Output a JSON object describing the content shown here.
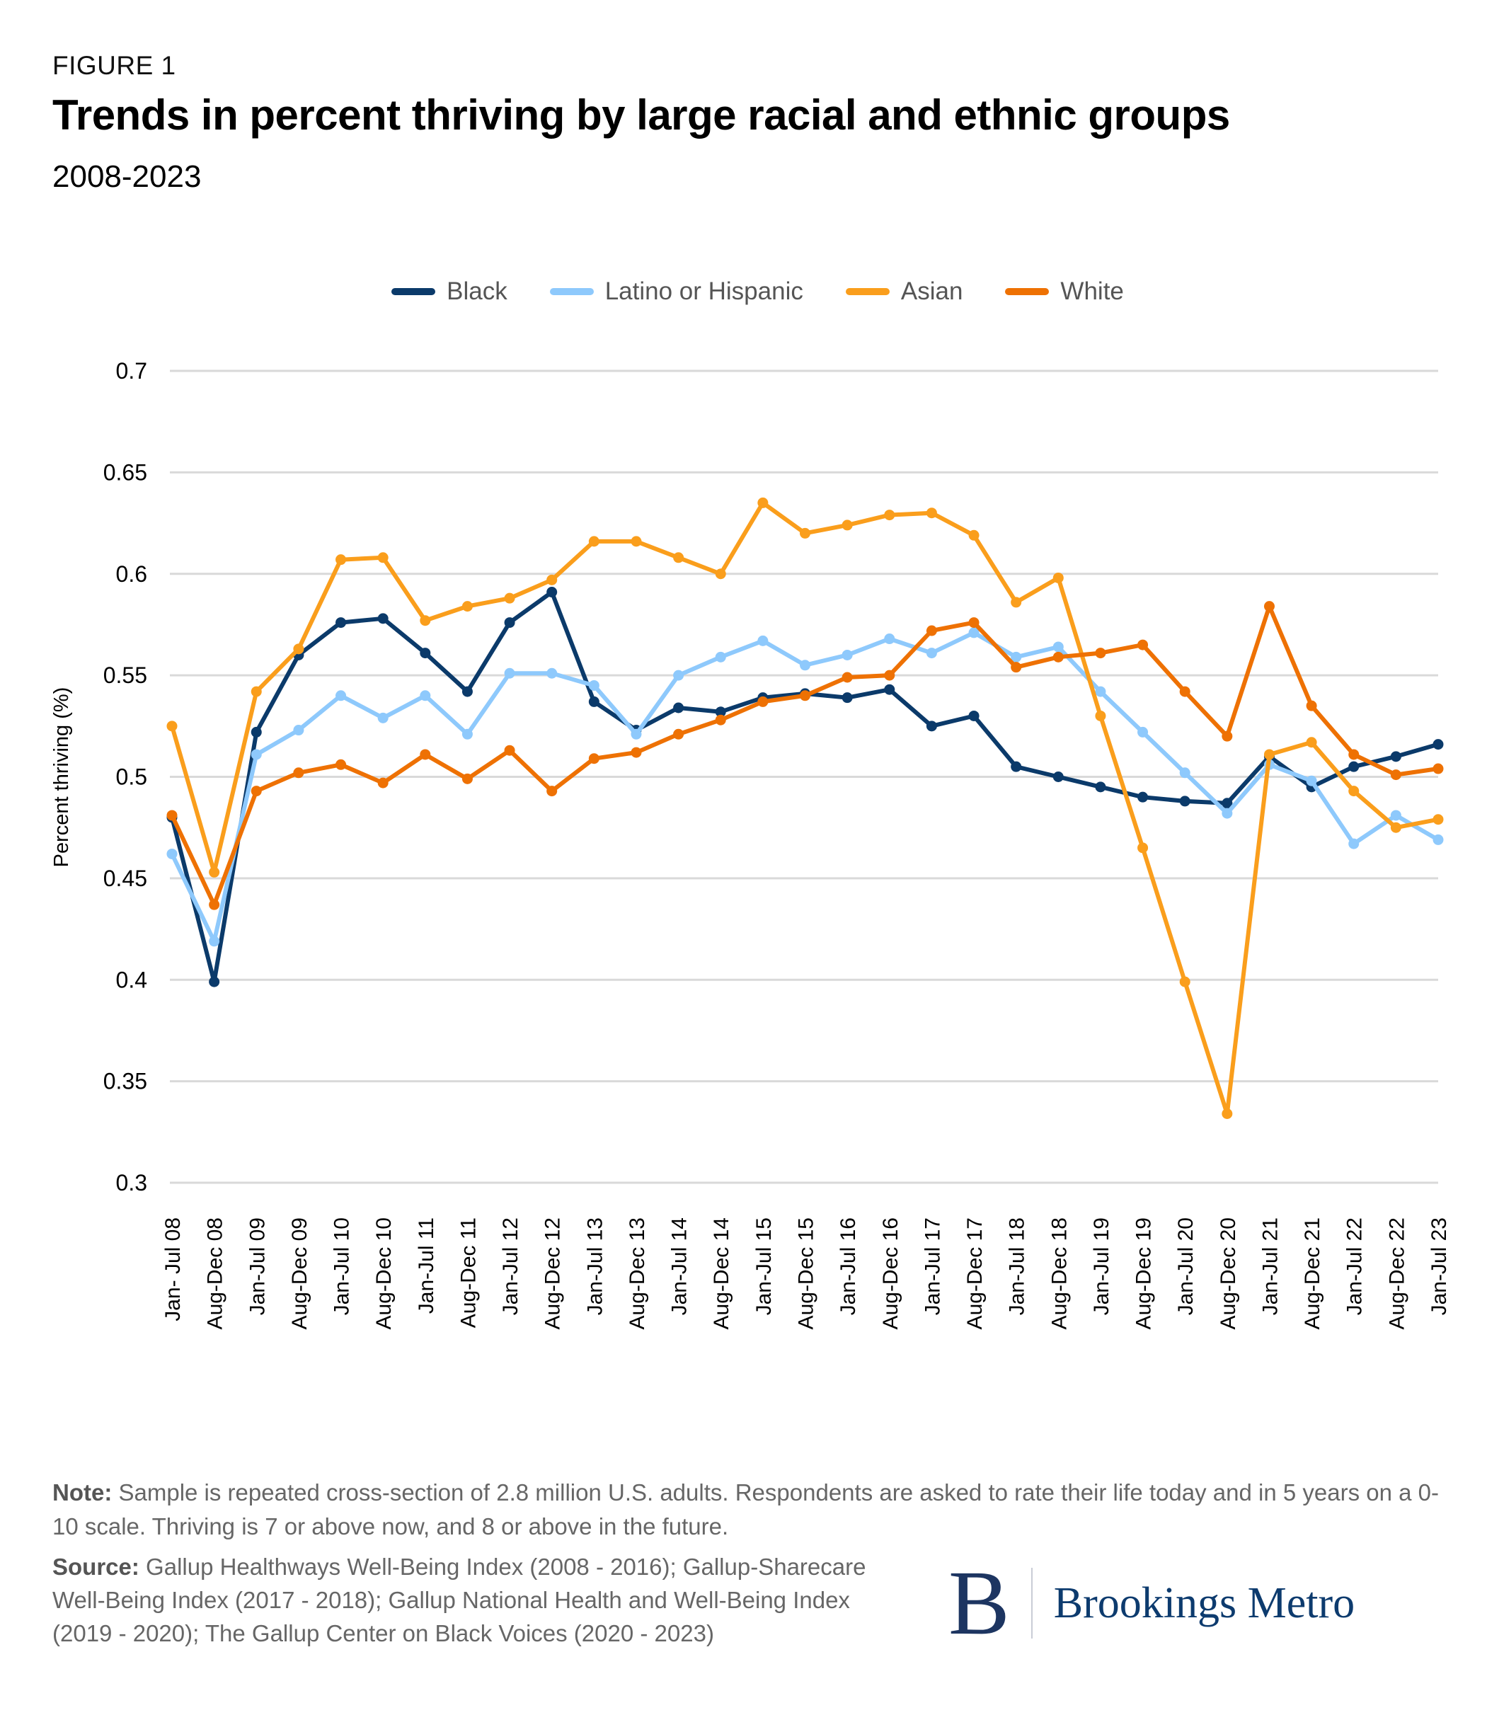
{
  "header": {
    "figure_label": "FIGURE 1",
    "title": "Trends in percent thriving by large racial and ethnic groups",
    "subtitle": "2008-2023"
  },
  "colors": {
    "Black": "#0b3a6a",
    "Latino or Hispanic": "#8ec9fc",
    "Asian": "#fa9e1c",
    "White": "#ee7103",
    "gridline": "#d9d9d9"
  },
  "chart_data": {
    "type": "line",
    "title": "Trends in percent thriving by large racial and ethnic groups",
    "subtitle": "2008-2023",
    "xlabel": "",
    "ylabel": "Percent thriving (%)",
    "ylim": [
      0.3,
      0.7
    ],
    "yticks": [
      "0.7",
      "0.65",
      "0.6",
      "0.55",
      "0.5",
      "0.45",
      "0.4",
      "0.35",
      "0.3"
    ],
    "ytick_values": [
      0.7,
      0.65,
      0.6,
      0.55,
      0.5,
      0.45,
      0.4,
      0.35,
      0.3
    ],
    "grid": true,
    "legend_position": "top-center",
    "categories": [
      "Jan- Jul 08",
      "Aug-Dec 08",
      "Jan-Jul 09",
      "Aug-Dec 09",
      "Jan-Jul 10",
      "Aug-Dec 10",
      "Jan-Jul 11",
      "Aug-Dec 11",
      "Jan-Jul 12",
      "Aug-Dec 12",
      "Jan-Jul 13",
      "Aug-Dec 13",
      "Jan-Jul 14",
      "Aug-Dec 14",
      "Jan-Jul 15",
      "Aug-Dec 15",
      "Jan-Jul 16",
      "Aug-Dec 16",
      "Jan-Jul 17",
      "Aug-Dec 17",
      "Jan-Jul 18",
      "Aug-Dec 18",
      "Jan-Jul 19",
      "Aug-Dec 19",
      "Jan-Jul 20",
      "Aug-Dec 20",
      "Jan-Jul 21",
      "Aug-Dec 21",
      "Jan-Jul 22",
      "Aug-Dec 22",
      "Jan-Jul 23"
    ],
    "series": [
      {
        "name": "Black",
        "values": [
          0.48,
          0.399,
          0.522,
          0.56,
          0.576,
          0.578,
          0.561,
          0.542,
          0.576,
          0.591,
          0.537,
          0.523,
          0.534,
          0.532,
          0.539,
          0.541,
          0.539,
          0.543,
          0.525,
          0.53,
          0.505,
          0.5,
          0.495,
          0.49,
          0.488,
          0.487,
          0.51,
          0.495,
          0.505,
          0.51,
          0.516
        ]
      },
      {
        "name": "Latino or Hispanic",
        "values": [
          0.462,
          0.419,
          0.511,
          0.523,
          0.54,
          0.529,
          0.54,
          0.521,
          0.551,
          0.551,
          0.545,
          0.521,
          0.55,
          0.559,
          0.567,
          0.555,
          0.56,
          0.568,
          0.561,
          0.571,
          0.559,
          0.564,
          0.542,
          0.522,
          0.502,
          0.482,
          0.506,
          0.498,
          0.467,
          0.481,
          0.469
        ]
      },
      {
        "name": "Asian",
        "values": [
          0.525,
          0.453,
          0.542,
          0.563,
          0.607,
          0.608,
          0.577,
          0.584,
          0.588,
          0.597,
          0.616,
          0.616,
          0.608,
          0.6,
          0.635,
          0.62,
          0.624,
          0.629,
          0.63,
          0.619,
          0.586,
          0.598,
          0.53,
          0.465,
          0.399,
          0.334,
          0.511,
          0.517,
          0.493,
          0.475,
          0.479
        ]
      },
      {
        "name": "White",
        "values": [
          0.481,
          0.437,
          0.493,
          0.502,
          0.506,
          0.497,
          0.511,
          0.499,
          0.513,
          0.493,
          0.509,
          0.512,
          0.521,
          0.528,
          0.537,
          0.54,
          0.549,
          0.55,
          0.572,
          0.576,
          0.554,
          0.559,
          0.561,
          0.565,
          0.542,
          0.52,
          0.584,
          0.535,
          0.511,
          0.501,
          0.504
        ]
      }
    ]
  },
  "legend": [
    {
      "label": "Black"
    },
    {
      "label": "Latino or Hispanic"
    },
    {
      "label": "Asian"
    },
    {
      "label": "White"
    }
  ],
  "footer": {
    "note_label": "Note:",
    "note_text": " Sample is repeated cross-section of 2.8 million U.S. adults. Respondents are asked to rate their life today and in 5 years on a 0-10 scale. Thriving is 7 or above now, and 8 or above in the future.",
    "source_label": "Source:",
    "source_text": " Gallup Healthways Well-Being Index (2008 - 2016); Gallup-Sharecare Well-Being Index (2017 - 2018); Gallup National Health and Well-Being Index (2019 - 2020); The Gallup Center on Black Voices (2020 - 2023)",
    "logo_mark": "B",
    "logo_text": "Brookings Metro"
  }
}
